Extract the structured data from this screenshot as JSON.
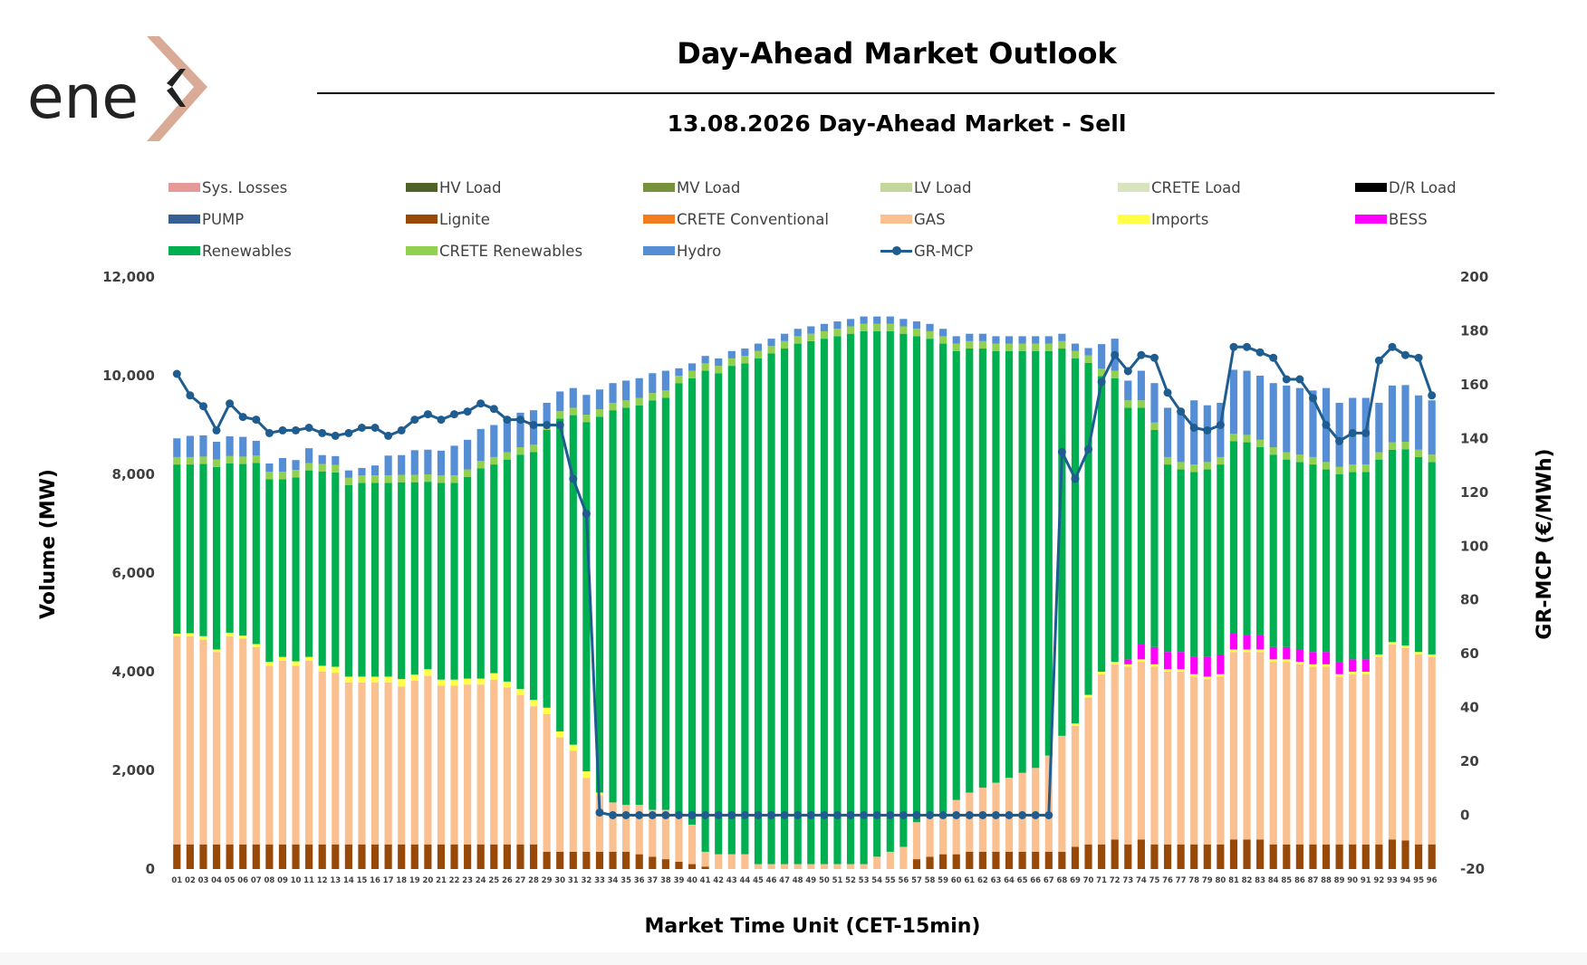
{
  "logo": {
    "text": "ene",
    "mark": "x"
  },
  "title": "Day-Ahead Market Outlook",
  "subtitle": "13.08.2026  Day-Ahead Market - Sell",
  "legend": [
    {
      "label": "Sys. Losses",
      "color": "#e39a99",
      "kind": "bar"
    },
    {
      "label": "HV Load",
      "color": "#4f6228",
      "kind": "bar"
    },
    {
      "label": "MV Load",
      "color": "#76923c",
      "kind": "bar"
    },
    {
      "label": "LV Load",
      "color": "#c3d69b",
      "kind": "bar"
    },
    {
      "label": "CRETE Load",
      "color": "#d7e4bd",
      "kind": "bar"
    },
    {
      "label": "D/R Load",
      "color": "#000000",
      "kind": "bar"
    },
    {
      "label": "PUMP",
      "color": "#376092",
      "kind": "bar"
    },
    {
      "label": "Lignite",
      "color": "#984807",
      "kind": "bar"
    },
    {
      "label": "CRETE Conventional",
      "color": "#f07d20",
      "kind": "bar"
    },
    {
      "label": "GAS",
      "color": "#fac090",
      "kind": "bar"
    },
    {
      "label": "Imports",
      "color": "#ffff47",
      "kind": "bar"
    },
    {
      "label": "BESS",
      "color": "#ff00ff",
      "kind": "bar"
    },
    {
      "label": "Renewables",
      "color": "#00b050",
      "kind": "bar"
    },
    {
      "label": "CRETE Renewables",
      "color": "#92d050",
      "kind": "bar"
    },
    {
      "label": "Hydro",
      "color": "#558ed5",
      "kind": "bar"
    },
    {
      "label": "GR-MCP",
      "color": "#1f5d91",
      "kind": "line"
    }
  ],
  "chart_data": {
    "type": "bar",
    "stacked": true,
    "xlabel": "Market Time Unit (CET-15min)",
    "ylabel": "Volume (MW)",
    "y2label": "GR-MCP (€/MWh)",
    "ylim": [
      0,
      12000
    ],
    "y2lim": [
      -20,
      200
    ],
    "yticks": [
      "0",
      "2,000",
      "4,000",
      "6,000",
      "8,000",
      "10,000",
      "12,000"
    ],
    "y2ticks": [
      "-20",
      "0",
      "20",
      "40",
      "60",
      "80",
      "100",
      "120",
      "140",
      "160",
      "180",
      "200"
    ],
    "grid": false,
    "legend_position": "top",
    "categories": [
      "01",
      "02",
      "03",
      "04",
      "05",
      "06",
      "07",
      "08",
      "09",
      "10",
      "11",
      "12",
      "13",
      "14",
      "15",
      "16",
      "17",
      "18",
      "19",
      "20",
      "21",
      "22",
      "23",
      "24",
      "25",
      "26",
      "27",
      "28",
      "29",
      "30",
      "31",
      "32",
      "33",
      "34",
      "35",
      "36",
      "37",
      "38",
      "39",
      "40",
      "41",
      "42",
      "43",
      "44",
      "45",
      "46",
      "47",
      "48",
      "49",
      "50",
      "51",
      "52",
      "53",
      "54",
      "55",
      "56",
      "57",
      "58",
      "59",
      "60",
      "61",
      "62",
      "63",
      "64",
      "65",
      "66",
      "67",
      "68",
      "69",
      "70",
      "71",
      "72",
      "73",
      "74",
      "75",
      "76",
      "77",
      "78",
      "79",
      "80",
      "81",
      "82",
      "83",
      "84",
      "85",
      "86",
      "87",
      "88",
      "89",
      "90",
      "91",
      "92",
      "93",
      "94",
      "95",
      "96"
    ],
    "series": [
      {
        "name": "Lignite",
        "color": "#984807",
        "values": [
          500,
          500,
          500,
          500,
          500,
          500,
          500,
          500,
          500,
          500,
          500,
          500,
          500,
          500,
          500,
          500,
          500,
          500,
          500,
          500,
          500,
          500,
          500,
          500,
          500,
          500,
          500,
          500,
          350,
          350,
          350,
          350,
          350,
          350,
          350,
          300,
          250,
          200,
          150,
          100,
          50,
          0,
          0,
          0,
          0,
          0,
          0,
          0,
          0,
          0,
          0,
          0,
          0,
          0,
          0,
          0,
          200,
          250,
          300,
          300,
          350,
          350,
          350,
          350,
          350,
          350,
          350,
          350,
          450,
          500,
          500,
          600,
          500,
          600,
          500,
          500,
          500,
          500,
          500,
          500,
          600,
          600,
          600,
          500,
          500,
          500,
          500,
          500,
          500,
          500,
          500,
          500,
          600,
          580,
          500,
          500
        ]
      },
      {
        "name": "CRETE Conventional",
        "color": "#f07d20",
        "values": [
          0,
          0,
          0,
          0,
          0,
          0,
          0,
          0,
          0,
          0,
          0,
          0,
          0,
          0,
          0,
          0,
          0,
          0,
          0,
          0,
          0,
          0,
          0,
          0,
          0,
          0,
          0,
          0,
          0,
          0,
          0,
          0,
          0,
          0,
          0,
          0,
          0,
          0,
          0,
          0,
          0,
          0,
          0,
          0,
          0,
          0,
          0,
          0,
          0,
          0,
          0,
          0,
          0,
          0,
          0,
          0,
          0,
          0,
          0,
          0,
          0,
          0,
          0,
          0,
          0,
          0,
          0,
          0,
          0,
          0,
          0,
          0,
          0,
          0,
          0,
          0,
          0,
          0,
          0,
          0,
          0,
          0,
          0,
          0,
          0,
          0,
          0,
          0,
          0,
          0,
          0,
          0,
          0,
          0,
          0,
          0
        ]
      },
      {
        "name": "GAS",
        "color": "#fac090",
        "values": [
          4220,
          4220,
          4150,
          3900,
          4220,
          4170,
          4000,
          3620,
          3720,
          3620,
          3720,
          3500,
          3480,
          3280,
          3280,
          3280,
          3280,
          3200,
          3320,
          3420,
          3220,
          3220,
          3240,
          3240,
          3340,
          3180,
          3030,
          2800,
          2790,
          2320,
          2050,
          1500,
          1150,
          1000,
          950,
          1000,
          950,
          1000,
          950,
          800,
          300,
          300,
          300,
          300,
          100,
          100,
          100,
          100,
          100,
          100,
          100,
          100,
          100,
          250,
          350,
          450,
          750,
          850,
          850,
          1100,
          1200,
          1300,
          1400,
          1500,
          1600,
          1700,
          1950,
          2350,
          2450,
          2980,
          3450,
          3550,
          3600,
          3600,
          3600,
          3500,
          3500,
          3400,
          3350,
          3400,
          3800,
          3800,
          3800,
          3700,
          3700,
          3650,
          3600,
          3600,
          3400,
          3450,
          3450,
          3800,
          3950,
          3900,
          3850,
          3800
        ]
      },
      {
        "name": "Imports",
        "color": "#ffff47",
        "values": [
          50,
          60,
          70,
          50,
          70,
          60,
          60,
          80,
          80,
          90,
          80,
          120,
          120,
          120,
          120,
          120,
          120,
          150,
          120,
          130,
          120,
          120,
          120,
          120,
          130,
          120,
          120,
          130,
          130,
          120,
          120,
          130,
          50,
          0,
          0,
          0,
          0,
          0,
          0,
          0,
          0,
          0,
          0,
          0,
          0,
          0,
          0,
          0,
          0,
          0,
          0,
          0,
          0,
          0,
          0,
          0,
          0,
          0,
          0,
          0,
          0,
          0,
          0,
          0,
          0,
          0,
          0,
          0,
          50,
          50,
          50,
          50,
          50,
          50,
          50,
          50,
          50,
          50,
          50,
          50,
          50,
          50,
          50,
          50,
          50,
          50,
          50,
          50,
          50,
          50,
          50,
          50,
          50,
          50,
          50,
          50
        ]
      },
      {
        "name": "BESS",
        "color": "#ff00ff",
        "values": [
          0,
          0,
          0,
          0,
          0,
          0,
          0,
          0,
          0,
          0,
          0,
          0,
          0,
          0,
          0,
          0,
          0,
          0,
          0,
          0,
          0,
          0,
          0,
          0,
          0,
          0,
          0,
          0,
          0,
          0,
          0,
          0,
          0,
          0,
          0,
          0,
          0,
          0,
          0,
          0,
          0,
          0,
          0,
          0,
          0,
          0,
          0,
          0,
          0,
          0,
          0,
          0,
          0,
          0,
          0,
          0,
          0,
          0,
          0,
          0,
          0,
          0,
          0,
          0,
          0,
          0,
          0,
          0,
          0,
          0,
          0,
          0,
          100,
          300,
          350,
          350,
          350,
          350,
          400,
          400,
          320,
          300,
          300,
          250,
          250,
          250,
          250,
          250,
          250,
          250,
          250,
          0,
          0,
          0,
          0,
          0
        ]
      },
      {
        "name": "Renewables",
        "color": "#00b050",
        "values": [
          3430,
          3420,
          3490,
          3700,
          3430,
          3480,
          3670,
          3700,
          3600,
          3730,
          3780,
          3940,
          3940,
          3880,
          3930,
          3930,
          3930,
          3990,
          3900,
          3800,
          3990,
          3990,
          4090,
          4260,
          4230,
          4500,
          4750,
          5020,
          5630,
          6340,
          6680,
          7080,
          7620,
          7950,
          8050,
          8100,
          8300,
          8350,
          8750,
          9050,
          9750,
          9750,
          9900,
          9950,
          10250,
          10350,
          10450,
          10550,
          10600,
          10650,
          10700,
          10750,
          10800,
          10650,
          10550,
          10400,
          9850,
          9650,
          9500,
          9100,
          9000,
          8900,
          8750,
          8650,
          8550,
          8450,
          8200,
          7850,
          7400,
          6730,
          5990,
          5750,
          5100,
          4800,
          4400,
          3800,
          3700,
          3750,
          3800,
          3850,
          3900,
          3900,
          3800,
          3900,
          3800,
          3800,
          3800,
          3700,
          3800,
          3800,
          3800,
          3950,
          3900,
          3980,
          3950,
          3900
        ]
      },
      {
        "name": "CRETE Renewables",
        "color": "#92d050",
        "values": [
          150,
          150,
          150,
          150,
          150,
          150,
          150,
          150,
          150,
          150,
          150,
          150,
          150,
          150,
          150,
          150,
          150,
          150,
          150,
          150,
          150,
          150,
          150,
          150,
          150,
          150,
          150,
          150,
          150,
          150,
          150,
          150,
          150,
          150,
          150,
          150,
          150,
          150,
          150,
          150,
          150,
          150,
          150,
          150,
          150,
          150,
          150,
          150,
          150,
          150,
          150,
          150,
          150,
          150,
          150,
          150,
          150,
          150,
          150,
          150,
          150,
          150,
          150,
          150,
          150,
          150,
          150,
          150,
          150,
          150,
          150,
          150,
          150,
          150,
          150,
          150,
          150,
          150,
          150,
          150,
          150,
          150,
          150,
          150,
          150,
          150,
          150,
          150,
          150,
          150,
          150,
          150,
          150,
          150,
          150,
          150
        ]
      },
      {
        "name": "Hydro",
        "color": "#558ed5",
        "values": [
          380,
          430,
          430,
          360,
          400,
          400,
          300,
          170,
          280,
          200,
          300,
          180,
          180,
          150,
          150,
          200,
          400,
          400,
          500,
          500,
          500,
          600,
          600,
          650,
          650,
          700,
          700,
          700,
          400,
          400,
          400,
          400,
          400,
          400,
          400,
          400,
          400,
          400,
          150,
          150,
          150,
          150,
          150,
          150,
          150,
          150,
          150,
          150,
          150,
          150,
          150,
          150,
          150,
          150,
          150,
          150,
          150,
          150,
          150,
          150,
          150,
          150,
          150,
          150,
          150,
          150,
          150,
          150,
          150,
          150,
          500,
          650,
          400,
          600,
          800,
          1000,
          1000,
          1300,
          1150,
          1100,
          1300,
          1300,
          1300,
          1300,
          1350,
          1350,
          1350,
          1500,
          1300,
          1350,
          1350,
          1000,
          1150,
          1150,
          1100,
          1100
        ]
      }
    ],
    "line": {
      "name": "GR-MCP",
      "color": "#1f5d91",
      "values": [
        164,
        156,
        152,
        143,
        153,
        148,
        147,
        142,
        143,
        143,
        144,
        142,
        141,
        142,
        144,
        144,
        141,
        143,
        147,
        149,
        147,
        149,
        150,
        153,
        151,
        147,
        147,
        145,
        145,
        145,
        125,
        112,
        1,
        0,
        0,
        0,
        0,
        0,
        0,
        0,
        0,
        0,
        0,
        0,
        0,
        0,
        0,
        0,
        0,
        0,
        0,
        0,
        0,
        0,
        0,
        0,
        0,
        0,
        0,
        0,
        0,
        0,
        0,
        0,
        0,
        0,
        0,
        135,
        125,
        136,
        161,
        171,
        165,
        171,
        170,
        157,
        150,
        144,
        143,
        145,
        174,
        174,
        172,
        170,
        162,
        162,
        155,
        145,
        139,
        142,
        142,
        169,
        174,
        171,
        170,
        156
      ]
    }
  }
}
